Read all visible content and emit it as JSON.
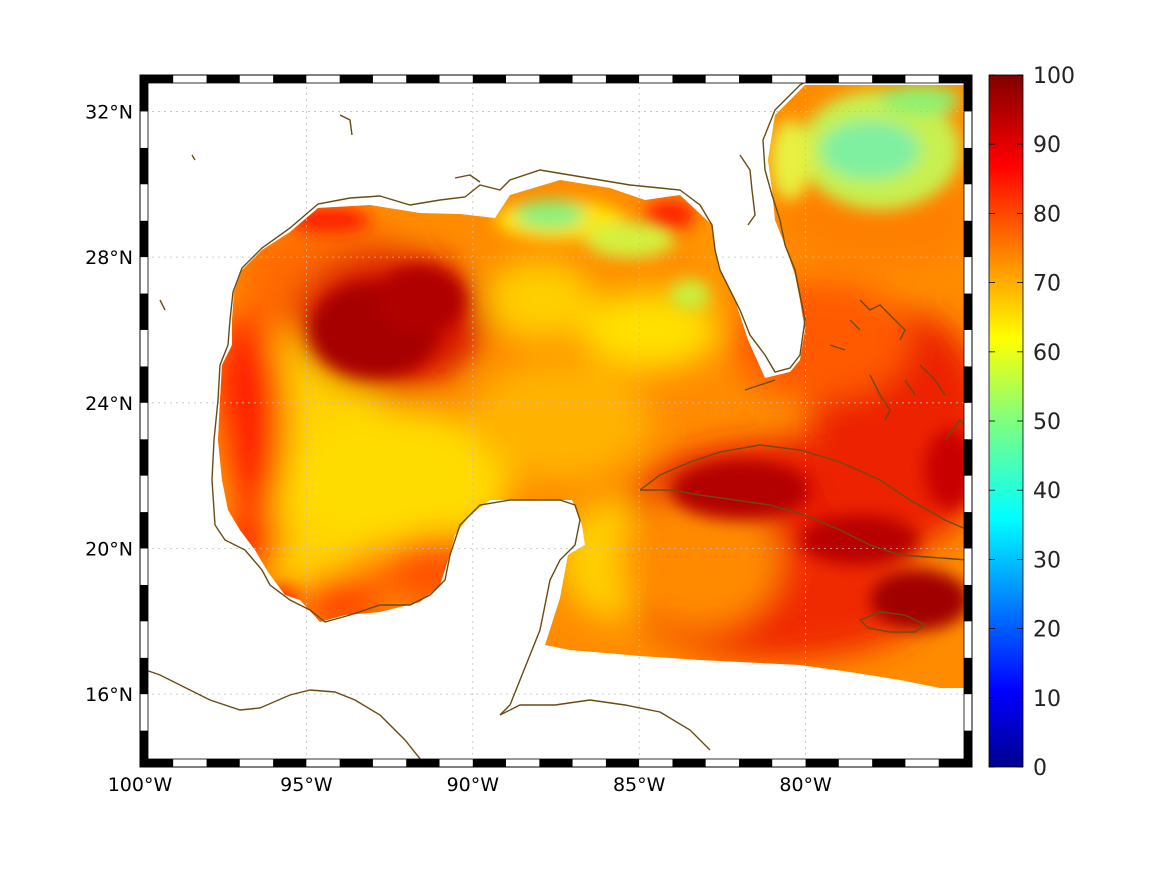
{
  "map": {
    "lon_range": [
      -100,
      -75
    ],
    "lat_range": [
      14,
      33
    ],
    "x_ticks": [
      "100°W",
      "95°W",
      "90°W",
      "85°W",
      "80°W"
    ],
    "y_ticks": [
      "32°N",
      "28°N",
      "24°N",
      "20°N",
      "16°N"
    ],
    "grid": true,
    "frame": "black-and-white alternating degree border"
  },
  "colorbar": {
    "colormap": "jet",
    "range": [
      0,
      100
    ],
    "ticks": [
      "100",
      "90",
      "80",
      "70",
      "60",
      "50",
      "40",
      "30",
      "20",
      "10",
      "0"
    ]
  },
  "colors": {
    "dark_red": "#8b0000",
    "red": "#e61f00",
    "orange": "#ff7a00",
    "yellow": "#ffe600",
    "green": "#8cf07a",
    "cyan": "#5fefc8",
    "coastline": "#6b4a12"
  },
  "chart_data": {
    "type": "heatmap",
    "description_of_field": "gridded percentage values over Gulf of Mexico, Caribbean and western Atlantic",
    "value_range": [
      0,
      100
    ],
    "regions": [
      {
        "name": "central-western Gulf maximum",
        "lon": -93.5,
        "lat": 26.5,
        "value": 95
      },
      {
        "name": "northern Gulf shelf low",
        "lon": -87.5,
        "lat": 29.2,
        "value": 58
      },
      {
        "name": "Atlantic off Georgia low",
        "lon": -77.5,
        "lat": 30.5,
        "value": 56
      },
      {
        "name": "south of Cuba maximum",
        "lon": -78,
        "lat": 19.5,
        "value": 93
      },
      {
        "name": "western Gulf (Mexico coast)",
        "lon": -96.5,
        "lat": 22,
        "value": 75
      },
      {
        "name": "Yucatan Channel",
        "lon": -85.5,
        "lat": 21,
        "value": 72
      }
    ]
  }
}
